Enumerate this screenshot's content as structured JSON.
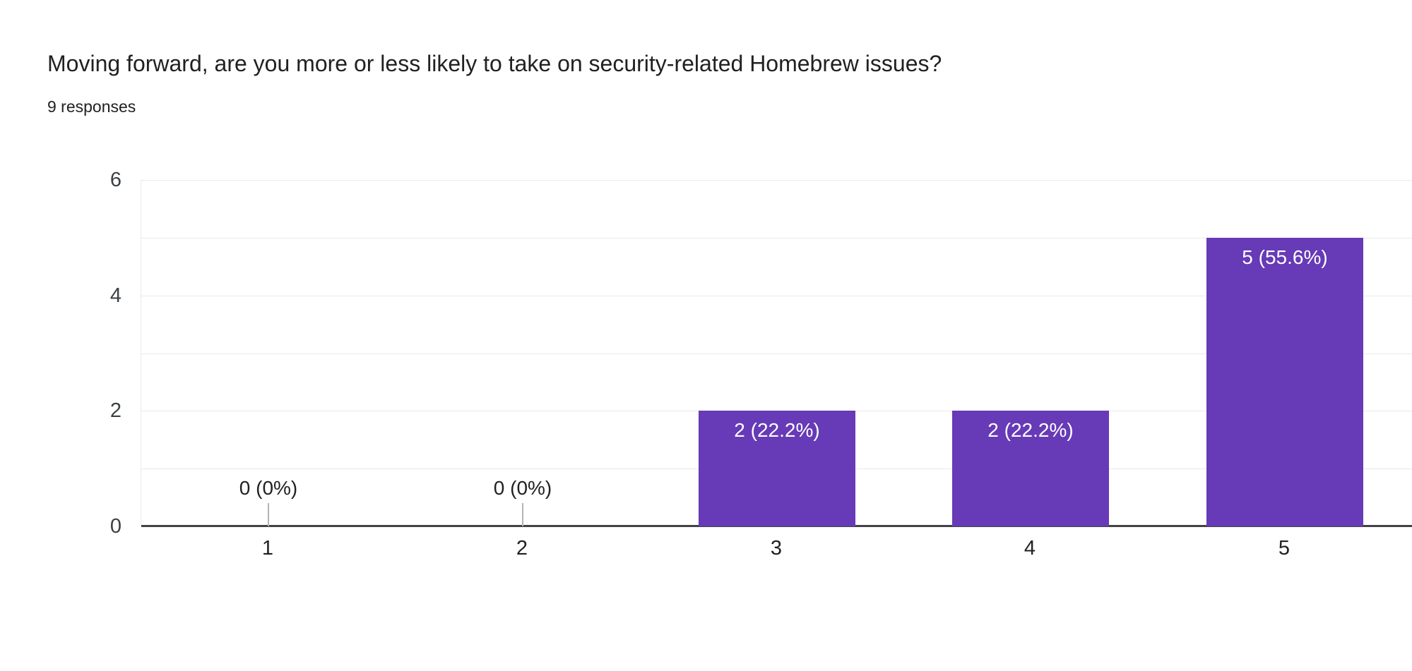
{
  "header": {
    "title": "Moving forward, are you more or less likely to take on security-related Homebrew issues?",
    "subtitle": "9 responses"
  },
  "chart_data": {
    "type": "bar",
    "title": "Moving forward, are you more or less likely to take on security-related Homebrew issues?",
    "subtitle": "9 responses",
    "total_responses": 9,
    "categories": [
      "1",
      "2",
      "3",
      "4",
      "5"
    ],
    "values": [
      0,
      0,
      2,
      2,
      5
    ],
    "bar_labels": [
      "0 (0%)",
      "0 (0%)",
      "2 (22.2%)",
      "2 (22.2%)",
      "5 (55.6%)"
    ],
    "percentages": [
      0,
      0,
      22.2,
      22.2,
      55.6
    ],
    "xlabel": "",
    "ylabel": "",
    "ylim": [
      0,
      6
    ],
    "y_tick_labels": [
      0,
      2,
      4,
      6
    ],
    "grid_step": 1,
    "grid": true,
    "legend_position": "none",
    "colors": {
      "bar": "#673ab7",
      "bar_label_text": "#ffffff",
      "zero_label_text": "#212121",
      "zero_stub": "#b3b3b3",
      "gridline": "#e9e9e9",
      "axis_line": "#424242",
      "y_tick_text": "#3c4043",
      "x_tick_text": "#212121",
      "title_text": "#212121",
      "background": "#ffffff"
    }
  }
}
